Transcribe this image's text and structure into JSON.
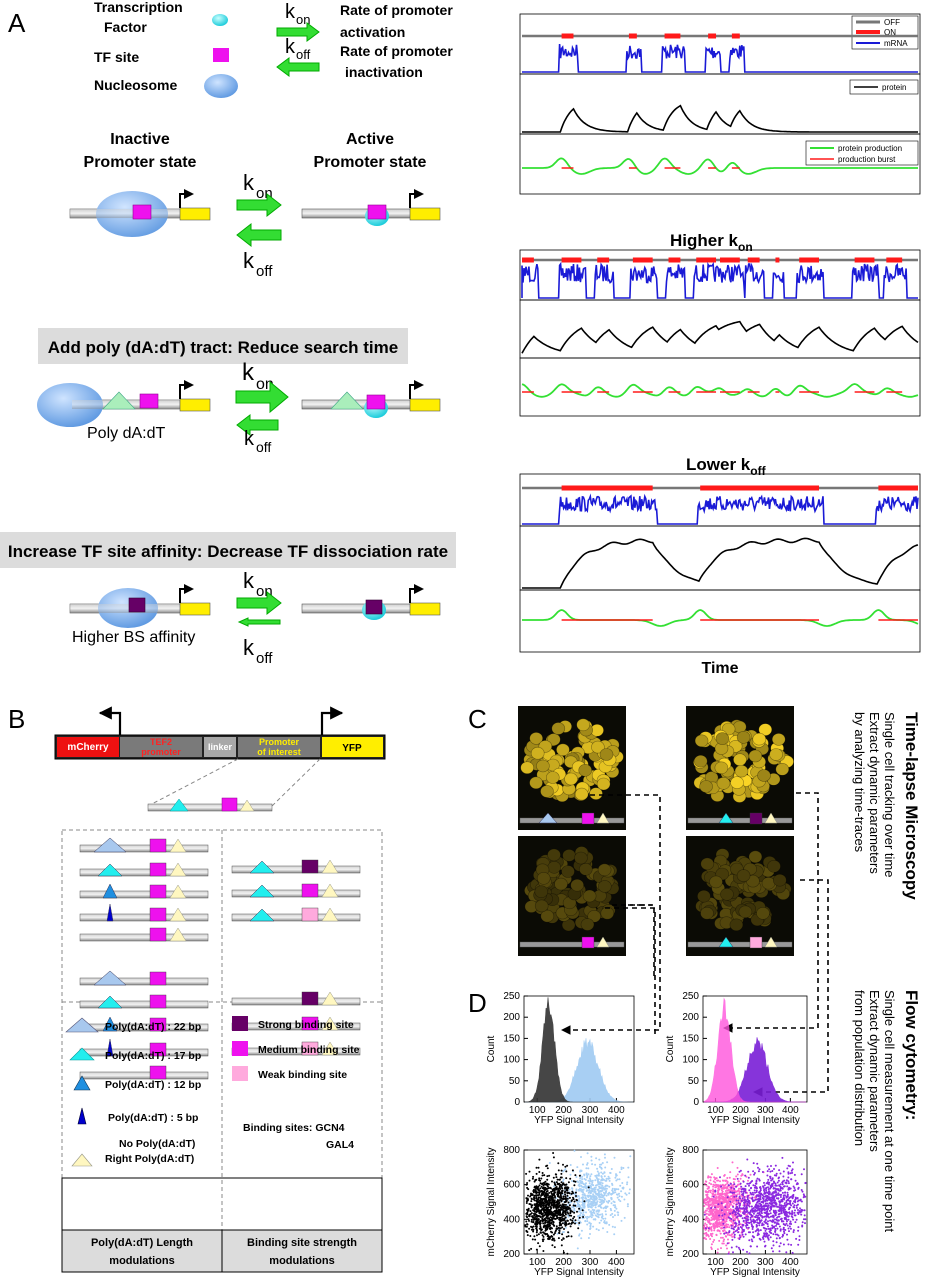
{
  "panel_labels": {
    "a": "A",
    "b": "B",
    "c": "C",
    "d": "D"
  },
  "legend_a": {
    "tf": [
      "Transcription",
      "Factor"
    ],
    "tf_site": "TF site",
    "nucleosome": "Nucleosome",
    "kon_desc": [
      "Rate of promoter",
      " activation"
    ],
    "koff_desc": [
      "Rate of promoter",
      "inactivation"
    ]
  },
  "states": {
    "inactive": [
      "Inactive",
      "Promoter state"
    ],
    "active": [
      "Active",
      "Promoter state"
    ]
  },
  "rates": {
    "k": "k",
    "on": "on",
    "off": "off"
  },
  "sections": {
    "polyA": "Add poly (dA:dT) tract: Reduce search time",
    "polyA_label": "Poly dA:dT",
    "affinity": "Increase TF site affinity: Decrease TF dissociation rate",
    "affinity_label": "Higher BS affinity"
  },
  "traces": {
    "legend1": [
      "OFF",
      "ON",
      "mRNA"
    ],
    "legend2": "protein",
    "legend3": [
      "protein production",
      "production burst"
    ],
    "title_higher": [
      "Higher k",
      "on"
    ],
    "title_lower": [
      "Lower k",
      "off"
    ],
    "xlabel": "Time",
    "colors": {
      "off": "#777777",
      "on": "#ff1a1a",
      "mrna": "#1a1ad6",
      "protein": "#000000",
      "production": "#33e033",
      "burst": "#ff1a1a"
    }
  },
  "construct": {
    "mcherry": "mCherry",
    "tef2": [
      "TEF2",
      "promoter"
    ],
    "linker": "linker",
    "promoter": [
      "Promoter",
      "of interest"
    ],
    "yfp": "YFP"
  },
  "legend_b": {
    "poly22": "Poly(dA:dT) : 22 bp",
    "poly17": "Poly(dA:dT) : 17 bp",
    "poly12": "Poly(dA:dT) : 12 bp",
    "poly5": "Poly(dA:dT) :  5 bp",
    "nopoly": "No Poly(dA:dT)",
    "rightpoly": "Right Poly(dA:dT)",
    "strong": "Strong binding site",
    "medium": "Medium binding site",
    "weak": "Weak binding site",
    "sites": [
      "Binding sites: GCN4",
      "GAL4"
    ],
    "col1": [
      "Poly(dA:dT) Length",
      "modulations"
    ],
    "col2": [
      "Binding site strength",
      "modulations"
    ]
  },
  "methods": {
    "tl_title": "Time-lapse Microscopy",
    "tl_lines": [
      "Single cell tracking over time",
      "Extract dynamic parameters",
      "by analyzing time-traces"
    ],
    "fc_title": "Flow cytometry:",
    "fc_lines": [
      "Single cell measurement at one time point",
      "Extract dynamic parameters",
      "from population distribution"
    ]
  },
  "hist": {
    "ylabel": "Count",
    "xlabel": "YFP Signal Intensity",
    "yticks": [
      "250",
      "200",
      "150",
      "100",
      "50",
      "0"
    ],
    "xticks": [
      "100",
      "200",
      "300",
      "400"
    ]
  },
  "scatter": {
    "ylabel": "mCherry Signal Intensity",
    "xlabel": "YFP Signal Intensity",
    "yticks": [
      "800",
      "600",
      "400",
      "200"
    ],
    "xticks": [
      "100",
      "200",
      "300",
      "400"
    ]
  }
}
